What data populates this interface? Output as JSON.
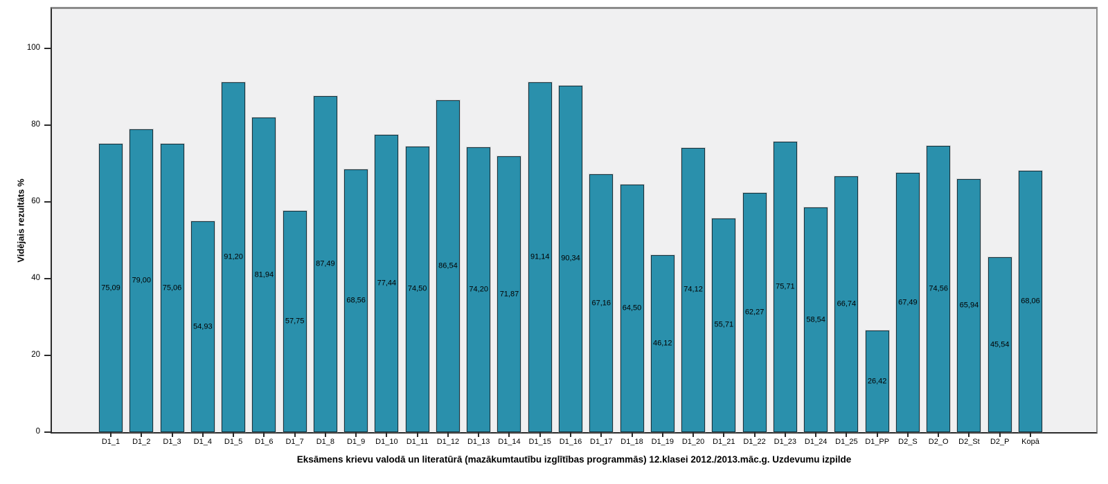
{
  "chart_data": {
    "type": "bar",
    "title": "",
    "xlabel": "Eksāmens krievu valodā un literatūrā (mazākumtautību izglītības programmās) 12.klasei 2012./2013.māc.g. Uzdevumu izpilde",
    "ylabel": "Vidējais rezultāts %",
    "categories": [
      "D1_1",
      "D1_2",
      "D1_3",
      "D1_4",
      "D1_5",
      "D1_6",
      "D1_7",
      "D1_8",
      "D1_9",
      "D1_10",
      "D1_11",
      "D1_12",
      "D1_13",
      "D1_14",
      "D1_15",
      "D1_16",
      "D1_17",
      "D1_18",
      "D1_19",
      "D1_20",
      "D1_21",
      "D1_22",
      "D1_23",
      "D1_24",
      "D1_25",
      "D1_PP",
      "D2_S",
      "D2_O",
      "D2_St",
      "D2_P",
      "Kopā"
    ],
    "values": [
      75.09,
      79.0,
      75.06,
      54.93,
      91.2,
      81.94,
      57.75,
      87.49,
      68.56,
      77.44,
      74.5,
      86.54,
      74.2,
      71.87,
      91.14,
      90.34,
      67.16,
      64.5,
      46.12,
      74.12,
      55.71,
      62.27,
      75.71,
      58.54,
      66.74,
      26.42,
      67.49,
      74.56,
      65.94,
      45.54,
      68.06
    ],
    "value_labels": [
      "75,09",
      "79,00",
      "75,06",
      "54,93",
      "91,20",
      "81,94",
      "57,75",
      "87,49",
      "68,56",
      "77,44",
      "74,50",
      "86,54",
      "74,20",
      "71,87",
      "91,14",
      "90,34",
      "67,16",
      "64,50",
      "46,12",
      "74,12",
      "55,71",
      "62,27",
      "75,71",
      "58,54",
      "66,74",
      "26,42",
      "67,49",
      "74,56",
      "65,94",
      "45,54",
      "68,06"
    ],
    "yticks": [
      0,
      20,
      40,
      60,
      80,
      100
    ],
    "ylim": [
      0,
      110.3
    ],
    "grid": false,
    "legend": null,
    "bar_color": "#2a90ac",
    "bar_border_color": "#17323c",
    "plot_background": "#f0f0f1",
    "value_label_position": "middle-of-bar",
    "decimal_separator": ","
  }
}
